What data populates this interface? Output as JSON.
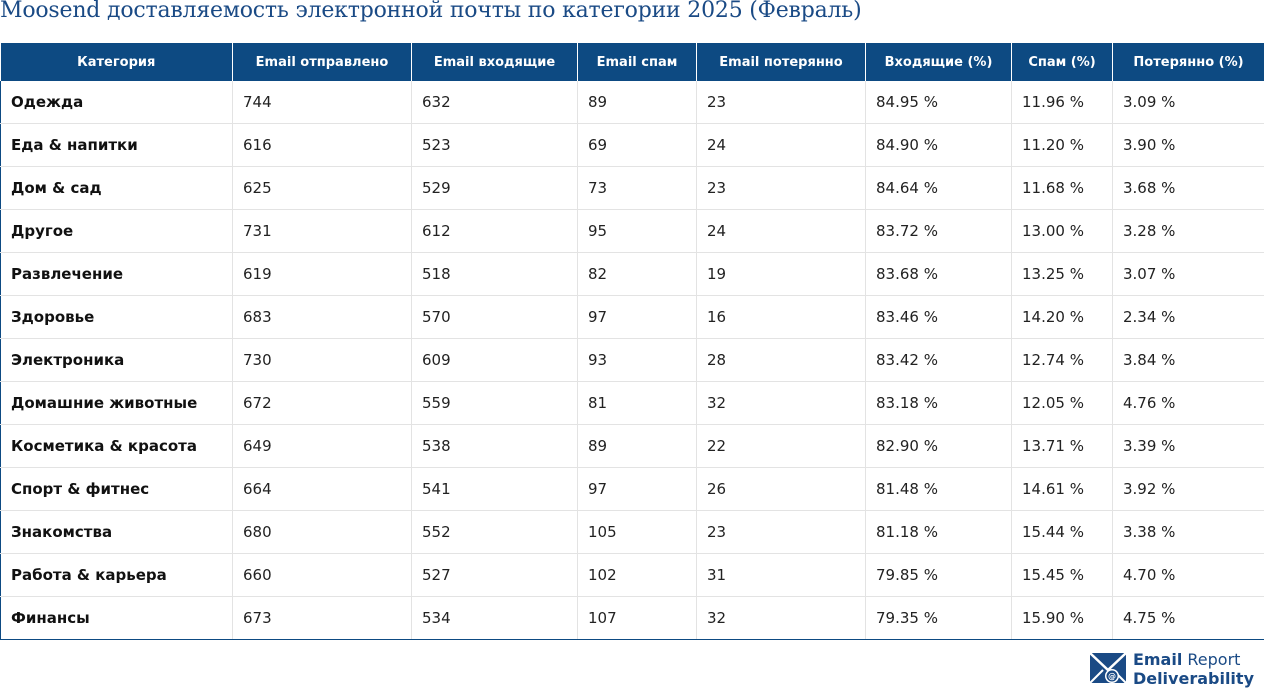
{
  "title": "Moosend доставляемость электронной почты по категории 2025 (Февраль)",
  "table": {
    "headers": [
      "Категория",
      "Email отправлено",
      "Email входящие",
      "Email спам",
      "Email потерянно",
      "Входящие (%)",
      "Спам (%)",
      "Потерянно (%)"
    ],
    "rows": [
      [
        "Одежда",
        "744",
        "632",
        "89",
        "23",
        "84.95 %",
        "11.96 %",
        "3.09 %"
      ],
      [
        "Еда & напитки",
        "616",
        "523",
        "69",
        "24",
        "84.90 %",
        "11.20 %",
        "3.90 %"
      ],
      [
        "Дом & сад",
        "625",
        "529",
        "73",
        "23",
        "84.64 %",
        "11.68 %",
        "3.68 %"
      ],
      [
        "Другое",
        "731",
        "612",
        "95",
        "24",
        "83.72 %",
        "13.00 %",
        "3.28 %"
      ],
      [
        "Развлечение",
        "619",
        "518",
        "82",
        "19",
        "83.68 %",
        "13.25 %",
        "3.07 %"
      ],
      [
        "Здоровье",
        "683",
        "570",
        "97",
        "16",
        "83.46 %",
        "14.20 %",
        "2.34 %"
      ],
      [
        "Электроника",
        "730",
        "609",
        "93",
        "28",
        "83.42 %",
        "12.74 %",
        "3.84 %"
      ],
      [
        "Домашние животные",
        "672",
        "559",
        "81",
        "32",
        "83.18 %",
        "12.05 %",
        "4.76 %"
      ],
      [
        "Косметика & красота",
        "649",
        "538",
        "89",
        "22",
        "82.90 %",
        "13.71 %",
        "3.39 %"
      ],
      [
        "Спорт & фитнес",
        "664",
        "541",
        "97",
        "26",
        "81.48 %",
        "14.61 %",
        "3.92 %"
      ],
      [
        "Знакомства",
        "680",
        "552",
        "105",
        "23",
        "81.18 %",
        "15.44 %",
        "3.38 %"
      ],
      [
        "Работа & карьера",
        "660",
        "527",
        "102",
        "31",
        "79.85 %",
        "15.45 %",
        "4.70 %"
      ],
      [
        "Финансы",
        "673",
        "534",
        "107",
        "32",
        "79.35 %",
        "15.90 %",
        "4.75 %"
      ]
    ]
  },
  "logo": {
    "line1_bold": "Email",
    "line1_rest": "Report",
    "line2": "Deliverability",
    "icon": "envelope-at-icon"
  },
  "colors": {
    "header_bg": "#0d4a82",
    "title": "#1a4a85"
  }
}
